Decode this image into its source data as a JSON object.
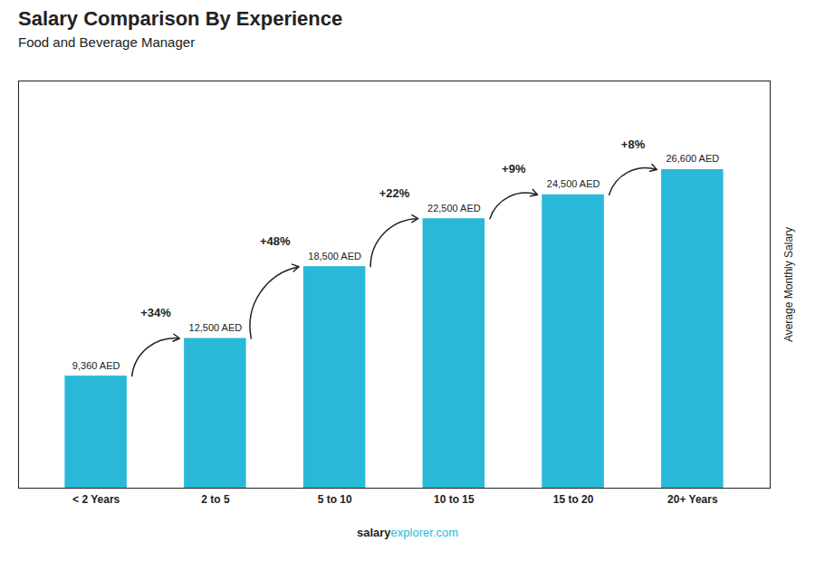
{
  "chart_data": {
    "type": "bar",
    "title": "Salary Comparison By Experience",
    "subtitle": "Food and Beverage Manager",
    "categories": [
      "< 2 Years",
      "2 to 5",
      "5 to 10",
      "10 to 15",
      "15 to 20",
      "20+ Years"
    ],
    "values": [
      9360,
      12500,
      18500,
      22500,
      24500,
      26600
    ],
    "value_labels": [
      "9,360 AED",
      "12,500 AED",
      "18,500 AED",
      "22,500 AED",
      "24,500 AED",
      "26,600 AED"
    ],
    "data_labels": true,
    "color": "#29B8D8",
    "ylim": [
      0,
      34000
    ],
    "yticks": [],
    "ylabel": "Average Monthly Salary",
    "tick_labels": "x",
    "grid": false,
    "annotations": [
      {
        "from": "< 2 Years",
        "to": "2 to 5",
        "text": "+34%"
      },
      {
        "from": "2 to 5",
        "to": "5 to 10",
        "text": "+48%"
      },
      {
        "from": "5 to 10",
        "to": "10 to 15",
        "text": "+22%"
      },
      {
        "from": "10 to 15",
        "to": "15 to 20",
        "text": "+9%"
      },
      {
        "from": "15 to 20",
        "to": "20+ Years",
        "text": "+8%"
      }
    ],
    "footer": [
      "salary",
      "explorer.com"
    ]
  }
}
